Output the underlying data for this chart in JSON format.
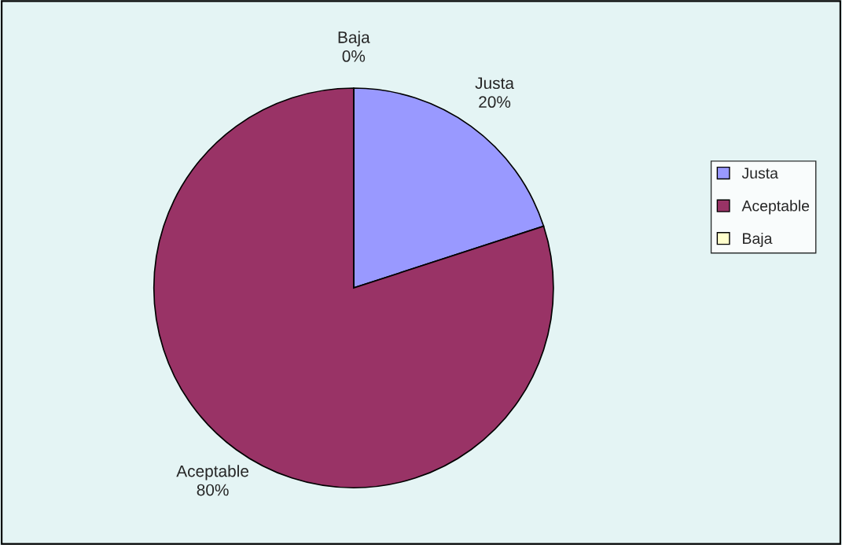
{
  "chart_data": {
    "type": "pie",
    "categories": [
      "Justa",
      "Aceptable",
      "Baja"
    ],
    "values": [
      20,
      80,
      0
    ],
    "value_labels": [
      "20%",
      "80%",
      "0%"
    ],
    "colors": [
      "#9999ff",
      "#993366",
      "#ffffcc"
    ],
    "legend": "right"
  }
}
